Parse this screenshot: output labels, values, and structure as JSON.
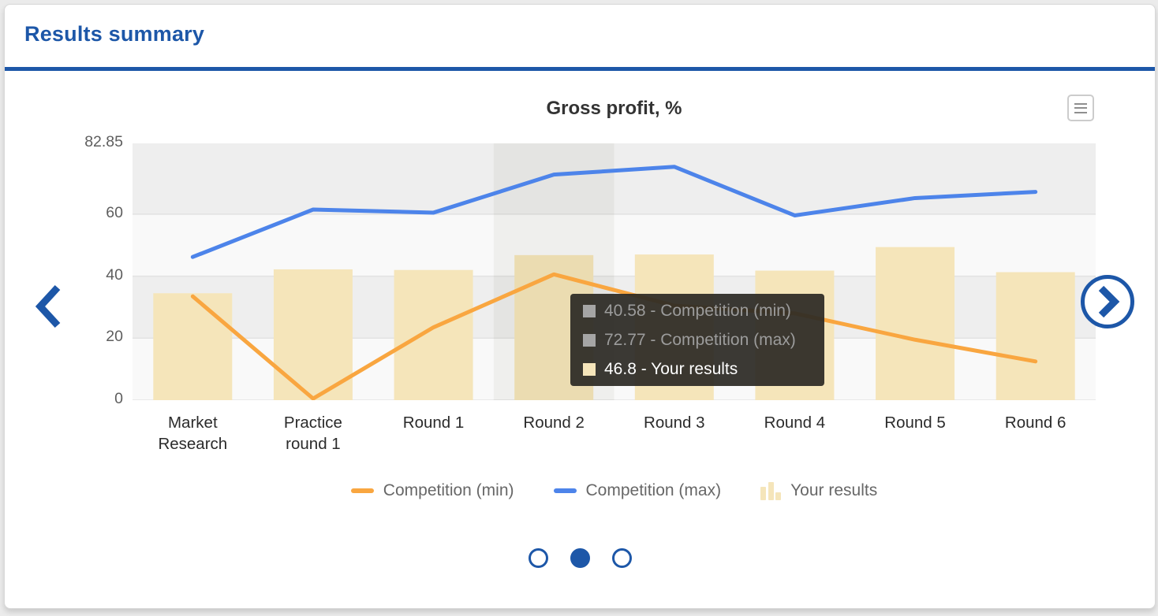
{
  "header": {
    "title": "Results summary"
  },
  "theme": {
    "accent_blue": "#1d57a8",
    "page_background": "#ebebeb",
    "card_background": "#ffffff"
  },
  "chart_data": {
    "type": "combo-bar-line",
    "title": "Gross profit, %",
    "categories": [
      "Market Research",
      "Practice round 1",
      "Round 1",
      "Round 2",
      "Round 3",
      "Round 4",
      "Round 5",
      "Round 6"
    ],
    "series": [
      {
        "name": "Competition (min)",
        "type": "line",
        "color": "#f9a640",
        "values": [
          33.5,
          0.5,
          23.5,
          40.58,
          30.5,
          28,
          19.5,
          12.5
        ]
      },
      {
        "name": "Competition (max)",
        "type": "line",
        "color": "#4d84ea",
        "values": [
          46.2,
          61.5,
          60.5,
          72.77,
          75.3,
          59.6,
          65.2,
          67.2
        ]
      },
      {
        "name": "Your results",
        "type": "bar",
        "color": "#f5e5ba",
        "values": [
          34.5,
          42.2,
          42,
          46.8,
          47,
          41.8,
          49.4,
          41.3
        ]
      }
    ],
    "ylim": [
      0,
      82.85
    ],
    "y_ticks": [
      0,
      20,
      40,
      60,
      82.85
    ],
    "grid": true,
    "gridline_color": "#e2e2e2",
    "band_colors": [
      "#eeeeee",
      "#f9f9f9"
    ],
    "legend_position": "bottom",
    "hovered_index": 3,
    "hover_fill": "rgba(60,50,20,0.05)"
  },
  "tooltip": {
    "rows": [
      {
        "text": "40.58 - Competition (min)",
        "swatch": "#a5a5a5",
        "color": "#9c9c9c"
      },
      {
        "text": "72.77 - Competition (max)",
        "swatch": "#a5a5a5",
        "color": "#9c9c9c"
      },
      {
        "text": "46.8 - Your results",
        "swatch": "#f5e5ba",
        "color": "#ffffff"
      }
    ]
  },
  "pagination": {
    "count": 3,
    "active": 1
  },
  "icons": {
    "menu": "hamburger-icon",
    "prev": "chevron-left-icon",
    "next": "chevron-right-icon"
  }
}
